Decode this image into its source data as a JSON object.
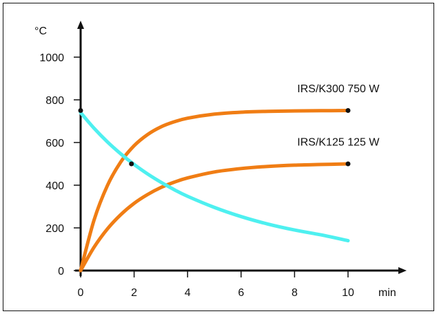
{
  "chart_data": {
    "type": "line",
    "ylabel": "°C",
    "xlabel": "min",
    "xlim": [
      0,
      10
    ],
    "ylim": [
      0,
      1000
    ],
    "x_ticks": [
      0,
      2,
      4,
      6,
      8,
      10
    ],
    "y_ticks": [
      0,
      200,
      400,
      600,
      800,
      1000
    ],
    "grid": false,
    "legend": "none",
    "series": [
      {
        "name": "IRS/K300 750 W",
        "color": "#f07d14",
        "x": [
          0,
          0.5,
          1,
          1.5,
          2,
          2.5,
          3,
          3.5,
          4,
          5,
          6,
          7,
          8,
          9,
          10
        ],
        "y": [
          0,
          236,
          398,
          509,
          585,
          637,
          673,
          697,
          714,
          733,
          742,
          746,
          748,
          749,
          750
        ]
      },
      {
        "name": "IRS/K125 125 W",
        "color": "#f07d14",
        "x": [
          0,
          0.5,
          1,
          1.5,
          2,
          2.5,
          3,
          3.5,
          4,
          5,
          6,
          7,
          8,
          9,
          10
        ],
        "y": [
          0,
          109,
          195,
          262,
          315,
          356,
          389,
          414,
          434,
          462,
          478,
          488,
          494,
          497,
          500
        ]
      },
      {
        "name": "",
        "color": "#4ef0f0",
        "x": [
          0,
          0.5,
          1,
          1.5,
          2,
          2.5,
          3,
          3.5,
          4,
          5,
          6,
          7,
          8,
          9,
          10
        ],
        "y": [
          740,
          667,
          603,
          547,
          497,
          453,
          414,
          379,
          348,
          296,
          253,
          218,
          190,
          167,
          140
        ]
      }
    ],
    "markers": [
      {
        "x": 0,
        "y": 750
      },
      {
        "x": 1.9,
        "y": 500
      },
      {
        "x": 10,
        "y": 750
      },
      {
        "x": 10,
        "y": 500
      }
    ],
    "annotations": [
      {
        "text": "IRS/K300 750 W",
        "x": 8.1,
        "y": 835
      },
      {
        "text": "IRS/K125 125 W",
        "x": 8.1,
        "y": 585
      }
    ]
  }
}
